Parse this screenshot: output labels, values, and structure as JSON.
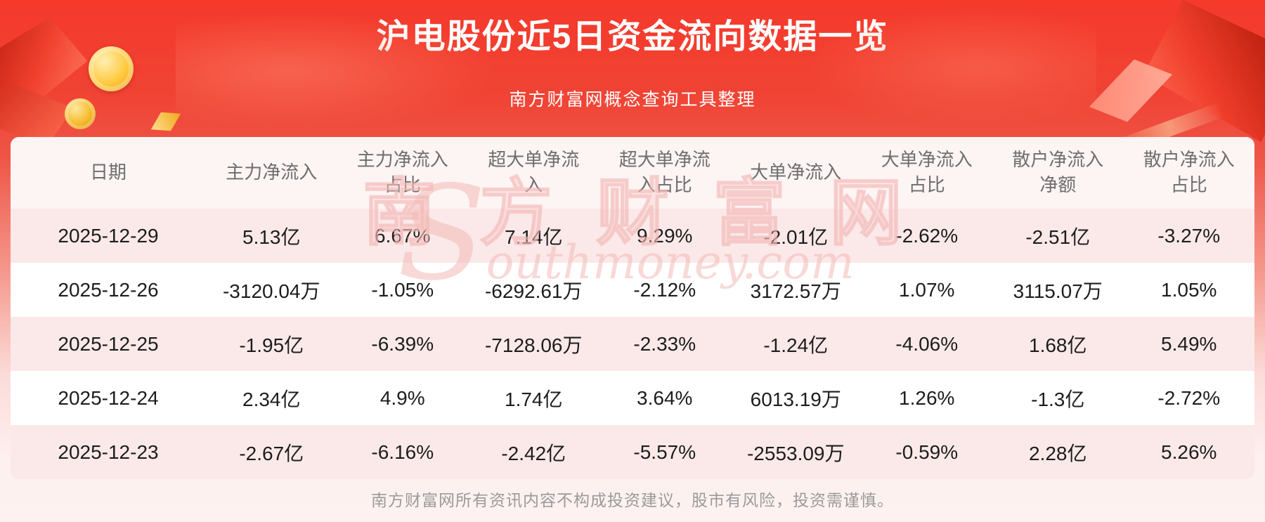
{
  "header": {
    "title": "沪电股份近5日资金流向数据一览",
    "subtitle": "南方财富网概念查询工具整理"
  },
  "chart_data": {
    "type": "table",
    "title": "沪电股份近5日资金流向数据一览",
    "columns": [
      "日期",
      "主力净流入",
      "主力净流入占比",
      "超大单净流入",
      "超大单净流入占比",
      "大单净流入",
      "大单净流入占比",
      "散户净流入净额",
      "散户净流入占比"
    ],
    "rows": [
      [
        "2025-12-29",
        "5.13亿",
        "6.67%",
        "7.14亿",
        "9.29%",
        "-2.01亿",
        "-2.62%",
        "-2.51亿",
        "-3.27%"
      ],
      [
        "2025-12-26",
        "-3120.04万",
        "-1.05%",
        "-6292.61万",
        "-2.12%",
        "3172.57万",
        "1.07%",
        "3115.07万",
        "1.05%"
      ],
      [
        "2025-12-25",
        "-1.95亿",
        "-6.39%",
        "-7128.06万",
        "-2.33%",
        "-1.24亿",
        "-4.06%",
        "1.68亿",
        "5.49%"
      ],
      [
        "2025-12-24",
        "2.34亿",
        "4.9%",
        "1.74亿",
        "3.64%",
        "6013.19万",
        "1.26%",
        "-1.3亿",
        "-2.72%"
      ],
      [
        "2025-12-23",
        "-2.67亿",
        "-6.16%",
        "-2.42亿",
        "-5.57%",
        "-2553.09万",
        "-0.59%",
        "2.28亿",
        "5.26%"
      ]
    ]
  },
  "watermark": {
    "cn": "南方财富网",
    "en": "Southmoney.com"
  },
  "footer": {
    "disclaimer": "南方财富网所有资讯内容不构成投资建议，股市有风险，投资需谨慎。"
  },
  "colors": {
    "banner_red": "#f5392b",
    "stripe_pink": "#fbe9e9",
    "header_row_pink": "#fdf4f4",
    "text_dark": "#1d1d1d",
    "header_text_gray": "#6e6e6e",
    "footer_text_gray": "#9a9a9a",
    "watermark_pink": "#f3b7b4",
    "coin_gold": "#ffc93c"
  }
}
